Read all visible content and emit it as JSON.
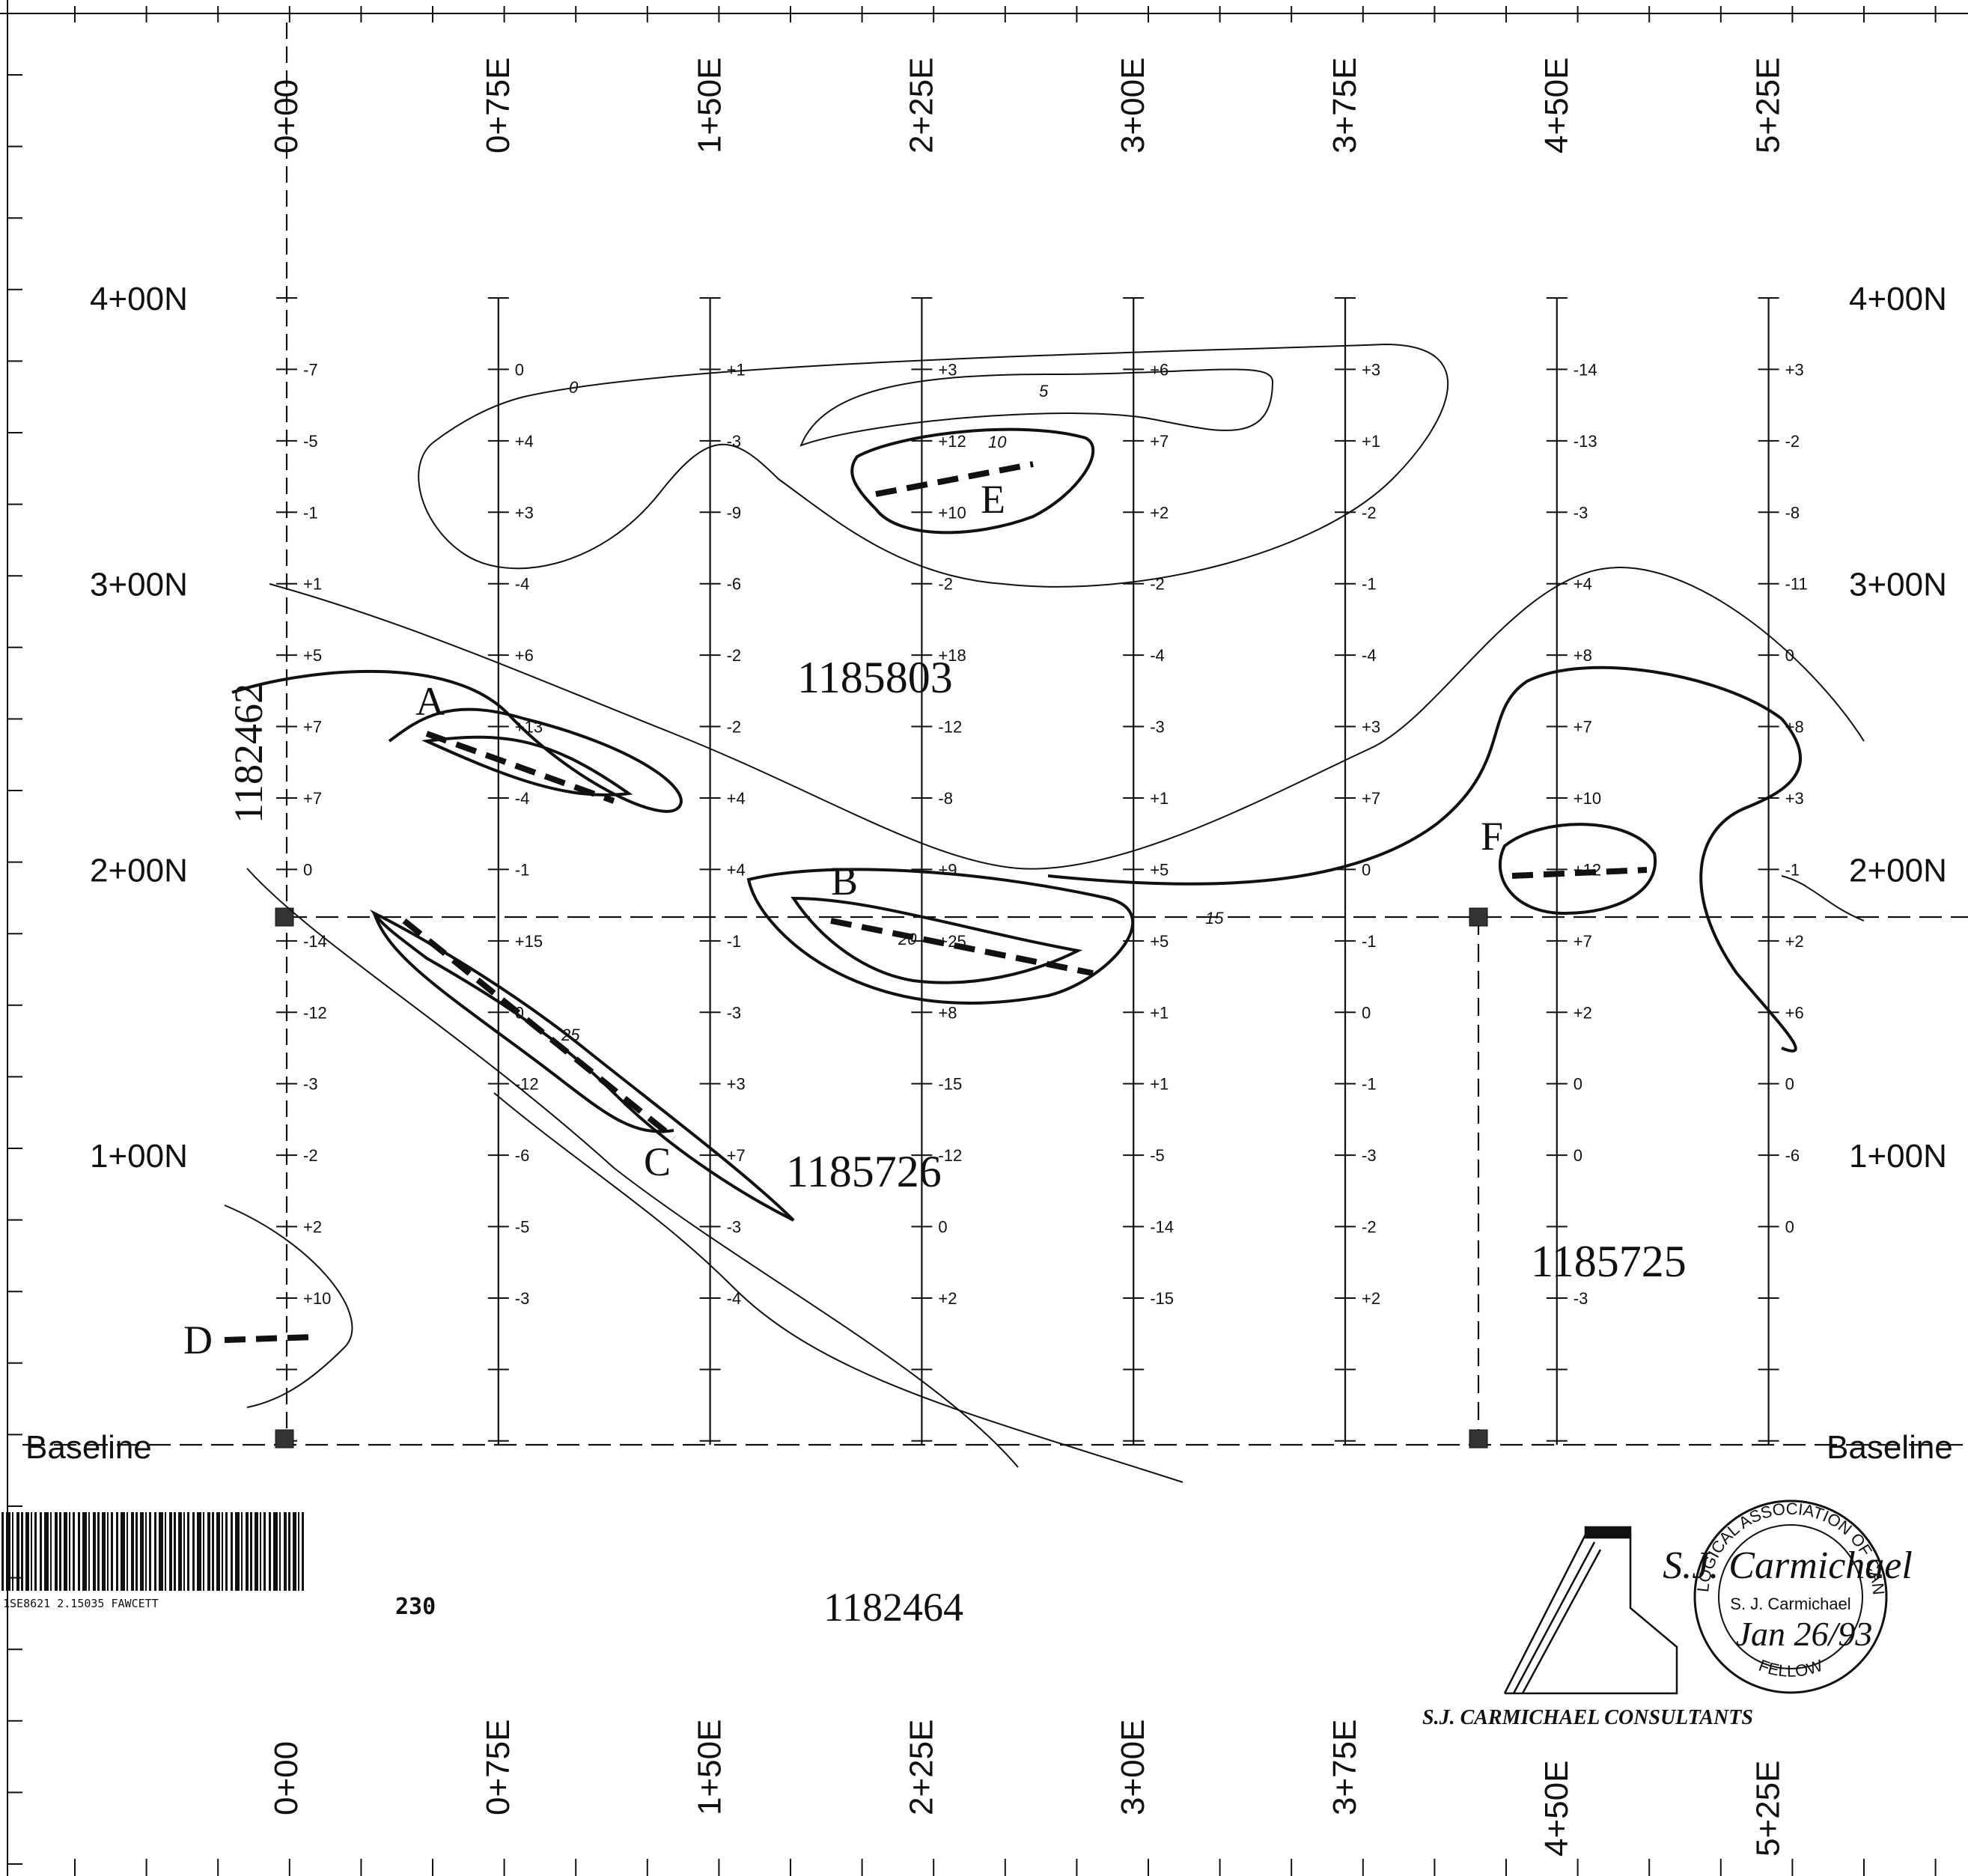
{
  "map": {
    "easting_labels": [
      "0+00",
      "0+75E",
      "1+50E",
      "2+25E",
      "3+00E",
      "3+75E",
      "4+50E",
      "5+25E"
    ],
    "northing_labels": [
      "4+00N",
      "3+00N",
      "2+00N",
      "1+00N"
    ],
    "baseline_label": "Baseline",
    "claim_numbers": [
      "1185803",
      "1185726",
      "1185725",
      "1182462",
      "1182464"
    ],
    "anomaly_labels": [
      "A",
      "B",
      "C",
      "D",
      "E",
      "F"
    ],
    "contour_levels": [
      "0",
      "5",
      "10",
      "15",
      "20",
      "25"
    ],
    "station_values": [
      [
        "-7",
        "-5",
        "-1",
        "+1",
        "+5",
        "+7",
        "+7",
        "0",
        "-14",
        "-12",
        "-3",
        "-2",
        "+2",
        "+10"
      ],
      [
        "0",
        "+4",
        "+3",
        "-4",
        "+6",
        "+13",
        "-4",
        "-1",
        "+15",
        "0",
        "-12",
        "-6",
        "-5",
        "-3"
      ],
      [
        "+1",
        "-3",
        "-9",
        "-6",
        "-2",
        "-2",
        "+4",
        "+4",
        "-1",
        "-3",
        "+3",
        "+7",
        "-3",
        "-4"
      ],
      [
        "+3",
        "+12",
        "+10",
        "-2",
        "+18",
        "-12",
        "-8",
        "+9",
        "+25",
        "+8",
        "-15",
        "-12",
        "0",
        "+2"
      ],
      [
        "+6",
        "+7",
        "+2",
        "-2",
        "-4",
        "-3",
        "+1",
        "+5",
        "+5",
        "+1",
        "+1",
        "-5",
        "-14",
        "-15"
      ],
      [
        "+3",
        "+1",
        "-2",
        "-1",
        "-4",
        "+3",
        "+7",
        "0",
        "-1",
        "0",
        "-1",
        "-3",
        "-2",
        "+2"
      ],
      [
        "-14",
        "-13",
        "-3",
        "+4",
        "+8",
        "+7",
        "+10",
        "+12",
        "+7",
        "+2",
        "0",
        "0",
        "",
        "-3"
      ],
      [
        "+3",
        "-2",
        "-8",
        "-11",
        "0",
        "+8",
        "+3",
        "-1",
        "+2",
        "+6",
        "0",
        "-6",
        "0",
        ""
      ]
    ]
  },
  "footer": {
    "barcode_text": "1SE8621 2.15035 FAWCETT",
    "sheet_number": "230",
    "company": "S.J. CARMICHAEL CONSULTANTS",
    "seal_ring_top": "GEOLOGICAL ASSOCIATION OF CANADA",
    "seal_ring_bottom": "FELLOW",
    "seal_name": "S. J. Carmichael",
    "seal_signature": "S.J. Carmichael",
    "seal_date": "Jan 26/93"
  }
}
